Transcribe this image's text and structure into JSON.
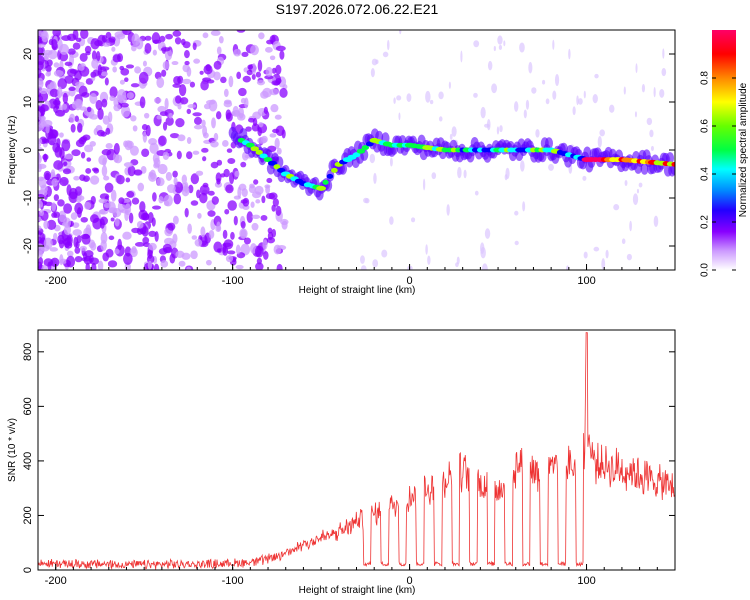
{
  "title": "S197.2026.072.06.22.E21",
  "colors": {
    "snr_line": "#ee3333",
    "background": "#ffffff",
    "axis": "#000000"
  },
  "chart_data": [
    {
      "type": "heatmap",
      "xlabel": "Height of straight line (km)",
      "ylabel": "Frequency (Hz)",
      "xlim": [
        -210,
        150
      ],
      "ylim": [
        -25,
        25
      ],
      "x_ticks": [
        -200,
        -100,
        0,
        100
      ],
      "y_ticks": [
        -20,
        -10,
        0,
        10,
        20
      ],
      "colorbar": {
        "label": "Normalized spectral amplitude",
        "range": [
          0,
          1
        ],
        "ticks": [
          "0.0",
          "0.2",
          "0.4",
          "0.6",
          "0.8"
        ],
        "colormap": [
          "#ffffff",
          "#cc99ff",
          "#8800ff",
          "#4400ff",
          "#0000ff",
          "#00ffff",
          "#00ff44",
          "#aaff00",
          "#ffff00",
          "#ff8800",
          "#ff0000",
          "#ff0066"
        ]
      },
      "ridge": {
        "x": [
          -100,
          -90,
          -80,
          -70,
          -60,
          -50,
          -40,
          -30,
          -20,
          -10,
          0,
          20,
          40,
          60,
          80,
          100,
          120,
          150
        ],
        "freq": [
          3,
          1,
          -2,
          -5,
          -7,
          -8,
          -3,
          -1,
          2,
          1,
          1,
          0,
          0,
          0,
          0,
          -2,
          -2,
          -3
        ]
      }
    },
    {
      "type": "line",
      "xlabel": "Height of straight line (km)",
      "ylabel": "SNR (10 * v/v)",
      "xlim": [
        -210,
        150
      ],
      "ylim": [
        0,
        880
      ],
      "x_ticks": [
        -200,
        -100,
        0,
        100
      ],
      "y_ticks": [
        0,
        200,
        400,
        600,
        800
      ],
      "series": [
        {
          "name": "SNR",
          "x": [
            -210,
            -180,
            -150,
            -120,
            -100,
            -90,
            -80,
            -70,
            -60,
            -55,
            -50,
            -45,
            -40,
            -35,
            -30,
            -25,
            -20,
            -15,
            -10,
            -5,
            0,
            5,
            10,
            15,
            20,
            25,
            30,
            35,
            40,
            45,
            50,
            55,
            60,
            65,
            70,
            75,
            80,
            85,
            90,
            95,
            99,
            100,
            101,
            105,
            110,
            120,
            130,
            140,
            150
          ],
          "values": [
            25,
            22,
            20,
            22,
            25,
            30,
            40,
            60,
            100,
            110,
            120,
            130,
            140,
            160,
            180,
            200,
            210,
            230,
            240,
            260,
            280,
            290,
            300,
            320,
            340,
            360,
            370,
            350,
            330,
            320,
            310,
            340,
            390,
            400,
            380,
            360,
            370,
            380,
            390,
            400,
            450,
            870,
            480,
            400,
            390,
            380,
            360,
            330,
            310
          ],
          "dropouts": [
            -24,
            -14,
            -4,
            6,
            16,
            26,
            36,
            46,
            56,
            66,
            76,
            86,
            96
          ]
        }
      ]
    }
  ]
}
